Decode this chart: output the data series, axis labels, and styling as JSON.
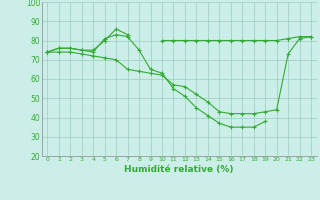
{
  "x": [
    0,
    1,
    2,
    3,
    4,
    5,
    6,
    7,
    8,
    9,
    10,
    11,
    12,
    13,
    14,
    15,
    16,
    17,
    18,
    19,
    20,
    21,
    22,
    23
  ],
  "line1": [
    74,
    76,
    76,
    75,
    75,
    80,
    86,
    83,
    null,
    null,
    null,
    null,
    null,
    null,
    null,
    null,
    null,
    null,
    null,
    null,
    null,
    null,
    null,
    null
  ],
  "line2": [
    74,
    76,
    76,
    75,
    74,
    81,
    83,
    82,
    75,
    65,
    63,
    55,
    51,
    45,
    41,
    37,
    35,
    35,
    35,
    38,
    null,
    null,
    null,
    null
  ],
  "line3": [
    74,
    74,
    74,
    73,
    72,
    71,
    70,
    65,
    64,
    63,
    62,
    57,
    56,
    52,
    48,
    43,
    42,
    42,
    42,
    43,
    44,
    73,
    81,
    82
  ],
  "line4_flat": [
    null,
    null,
    null,
    null,
    null,
    null,
    null,
    null,
    null,
    null,
    80,
    80,
    80,
    80,
    80,
    80,
    80,
    80,
    80,
    80,
    80,
    81,
    82,
    82
  ],
  "bg_color": "#cceee8",
  "grid_color": "#99ccbb",
  "line_color": "#33aa33",
  "marker": "+",
  "xlabel": "Humidité relative (%)",
  "xlim": [
    -0.5,
    23.5
  ],
  "ylim": [
    20,
    100
  ],
  "yticks": [
    20,
    30,
    40,
    50,
    60,
    70,
    80,
    90,
    100
  ],
  "xticks": [
    0,
    1,
    2,
    3,
    4,
    5,
    6,
    7,
    8,
    9,
    10,
    11,
    12,
    13,
    14,
    15,
    16,
    17,
    18,
    19,
    20,
    21,
    22,
    23
  ],
  "xlabel_fontsize": 6.5,
  "xtick_fontsize": 4.5,
  "ytick_fontsize": 5.5,
  "line_width": 0.8,
  "marker_size": 2.5
}
